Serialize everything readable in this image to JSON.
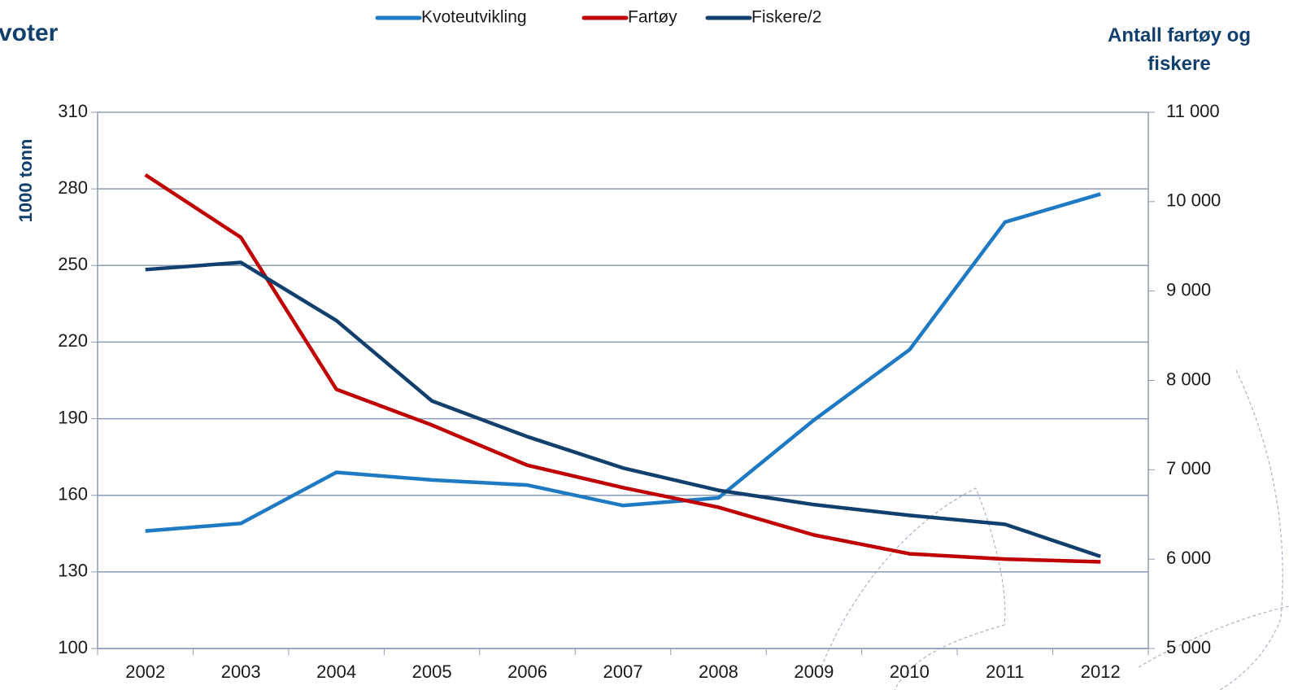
{
  "chart_data": {
    "type": "line",
    "title": "voter",
    "ylabel": "1000 tonn",
    "y2label": "Antall fartøy og fiskere",
    "categories": [
      "2002",
      "2003",
      "2004",
      "2005",
      "2006",
      "2007",
      "2008",
      "2009",
      "2010",
      "2011",
      "2012"
    ],
    "series": [
      {
        "name": "Kvoteutvikling",
        "color": "#1f7ac4",
        "values": [
          146,
          149,
          169,
          166,
          164,
          156,
          159,
          189.5,
          217,
          267,
          278
        ]
      },
      {
        "name": "Fartøy",
        "color": "#c00000",
        "axis": "y2",
        "values": [
          10300,
          9600,
          7900,
          7500,
          7050,
          6800,
          6580,
          6270,
          6060,
          6000,
          5970
        ]
      },
      {
        "name": "Fiskere/2",
        "color": "#12406e",
        "axis": "y2",
        "values": [
          9240,
          9320,
          8670,
          7770,
          7370,
          7020,
          6770,
          6610,
          6490,
          6390,
          6030
        ]
      }
    ],
    "ylim": [
      100,
      310
    ],
    "yticks": [
      100,
      130,
      160,
      190,
      220,
      250,
      280,
      310
    ],
    "y2lim": [
      5000,
      11000
    ],
    "y2ticks": [
      {
        "value": 5000,
        "label": "5 000"
      },
      {
        "value": 6000,
        "label": "6 000"
      },
      {
        "value": 7000,
        "label": "7 000"
      },
      {
        "value": 8000,
        "label": "8 000"
      },
      {
        "value": 9000,
        "label": "9 000"
      },
      {
        "value": 10000,
        "label": "10 000"
      },
      {
        "value": 11000,
        "label": "11 000"
      }
    ],
    "grid": true,
    "legend": "top"
  }
}
